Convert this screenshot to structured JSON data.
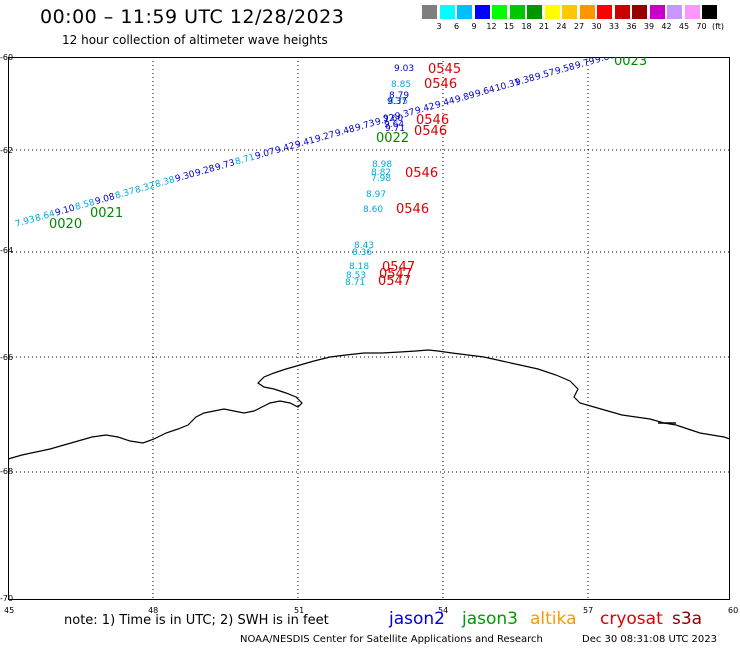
{
  "header": {
    "title": "00:00 – 11:59 UTC 12/28/2023",
    "subtitle": "12 hour collection of altimeter wave heights"
  },
  "color_scale": {
    "labels": [
      "3",
      "6",
      "9",
      "12",
      "15",
      "18",
      "21",
      "24",
      "27",
      "30",
      "33",
      "36",
      "39",
      "42",
      "45",
      "70"
    ],
    "colors": [
      "#7f7f7f",
      "#00ffff",
      "#00bfff",
      "#0000ff",
      "#00ff00",
      "#00c800",
      "#009600",
      "#ffff00",
      "#ffc800",
      "#ff9600",
      "#ff0000",
      "#c80000",
      "#960000",
      "#c800c8",
      "#c896ff",
      "#ff96ff",
      "#000000"
    ],
    "unit": "(ft)"
  },
  "axes": {
    "lat_labels": [
      "-60",
      "-62",
      "-64",
      "-66",
      "-68",
      "-70"
    ],
    "lon_labels": [
      "45",
      "48",
      "51",
      "54",
      "57",
      "60"
    ]
  },
  "map_data": {
    "jason2_color": "#0000c8",
    "jason2_light_color": "#00aadd",
    "jason3_color": "#008800",
    "cryosat_color": "#dd0000",
    "track_main": [
      {
        "v": "7.93",
        "c": "light"
      },
      {
        "v": "8.64",
        "c": "light"
      },
      {
        "v": "9.10",
        "c": "dark"
      },
      {
        "v": "8.58",
        "c": "light"
      },
      {
        "v": "9.08",
        "c": "dark"
      },
      {
        "v": "8.37",
        "c": "light"
      },
      {
        "v": "8.32",
        "c": "light"
      },
      {
        "v": "8.38",
        "c": "light"
      },
      {
        "v": "9.30",
        "c": "dark"
      },
      {
        "v": "9.28",
        "c": "dark"
      },
      {
        "v": "9.73",
        "c": "dark"
      },
      {
        "v": "8.71",
        "c": "light"
      },
      {
        "v": "9.07",
        "c": "dark"
      },
      {
        "v": "9.42",
        "c": "dark"
      },
      {
        "v": "9.41",
        "c": "dark"
      },
      {
        "v": "9.27",
        "c": "dark"
      },
      {
        "v": "9.48",
        "c": "dark"
      },
      {
        "v": "9.73",
        "c": "dark"
      },
      {
        "v": "9.22",
        "c": "dark"
      },
      {
        "v": "9.37",
        "c": "dark"
      },
      {
        "v": "9.42",
        "c": "dark"
      },
      {
        "v": "9.44",
        "c": "dark"
      },
      {
        "v": "9.89",
        "c": "dark"
      },
      {
        "v": "9.64",
        "c": "dark"
      },
      {
        "v": "10.31",
        "c": "dark"
      },
      {
        "v": "9.38",
        "c": "dark"
      },
      {
        "v": "9.57",
        "c": "dark"
      },
      {
        "v": "9.58",
        "c": "dark"
      },
      {
        "v": "9.79",
        "c": "dark"
      },
      {
        "v": "9.80",
        "c": "dark"
      }
    ],
    "track_vertical_1": [
      {
        "v": "9.03",
        "c": "dark"
      },
      {
        "v": "8.85",
        "c": "light"
      },
      {
        "v": "8.79",
        "c": "dark"
      },
      {
        "v": "8.75",
        "c": "light"
      },
      {
        "v": "9.37",
        "c": "dark"
      },
      {
        "v": "9.60",
        "c": "dark"
      },
      {
        "v": "9.64",
        "c": "dark"
      },
      {
        "v": "9.71",
        "c": "dark"
      },
      {
        "v": "8.98",
        "c": "light"
      },
      {
        "v": "8.82",
        "c": "light"
      },
      {
        "v": "7.98",
        "c": "light"
      },
      {
        "v": "8.97",
        "c": "light"
      },
      {
        "v": "8.60",
        "c": "light"
      }
    ],
    "track_vertical_2": [
      {
        "v": "8.43",
        "c": "light"
      },
      {
        "v": "8.36",
        "c": "light"
      },
      {
        "v": "8.18",
        "c": "light"
      },
      {
        "v": "8.53",
        "c": "light"
      },
      {
        "v": "8.71",
        "c": "light"
      }
    ],
    "time_labels": [
      {
        "t": "0545",
        "sat": "cryosat"
      },
      {
        "t": "0546",
        "sat": "cryosat"
      },
      {
        "t": "0546",
        "sat": "cryosat"
      },
      {
        "t": "0546",
        "sat": "cryosat"
      },
      {
        "t": "0546",
        "sat": "cryosat"
      },
      {
        "t": "0546",
        "sat": "cryosat"
      },
      {
        "t": "0547",
        "sat": "cryosat"
      },
      {
        "t": "0547",
        "sat": "cryosat"
      },
      {
        "t": "0547",
        "sat": "cryosat"
      },
      {
        "t": "0020",
        "sat": "jason3"
      },
      {
        "t": "0021",
        "sat": "jason3"
      },
      {
        "t": "0022",
        "sat": "jason3"
      },
      {
        "t": "0023",
        "sat": "jason3"
      }
    ]
  },
  "footer": {
    "note": "note: 1) Time is in UTC; 2) SWH is in feet",
    "legend": [
      {
        "name": "jason2",
        "color": "#0000dd"
      },
      {
        "name": "jason3",
        "color": "#009900"
      },
      {
        "name": "altika",
        "color": "#ff9900"
      },
      {
        "name": "cryosat",
        "color": "#dd0000"
      },
      {
        "name": "s3a",
        "color": "#880000"
      }
    ],
    "credit": "NOAA/NESDIS Center for Satellite Applications and Research",
    "timestamp": "Dec 30 08:31:08 UTC 2023"
  }
}
